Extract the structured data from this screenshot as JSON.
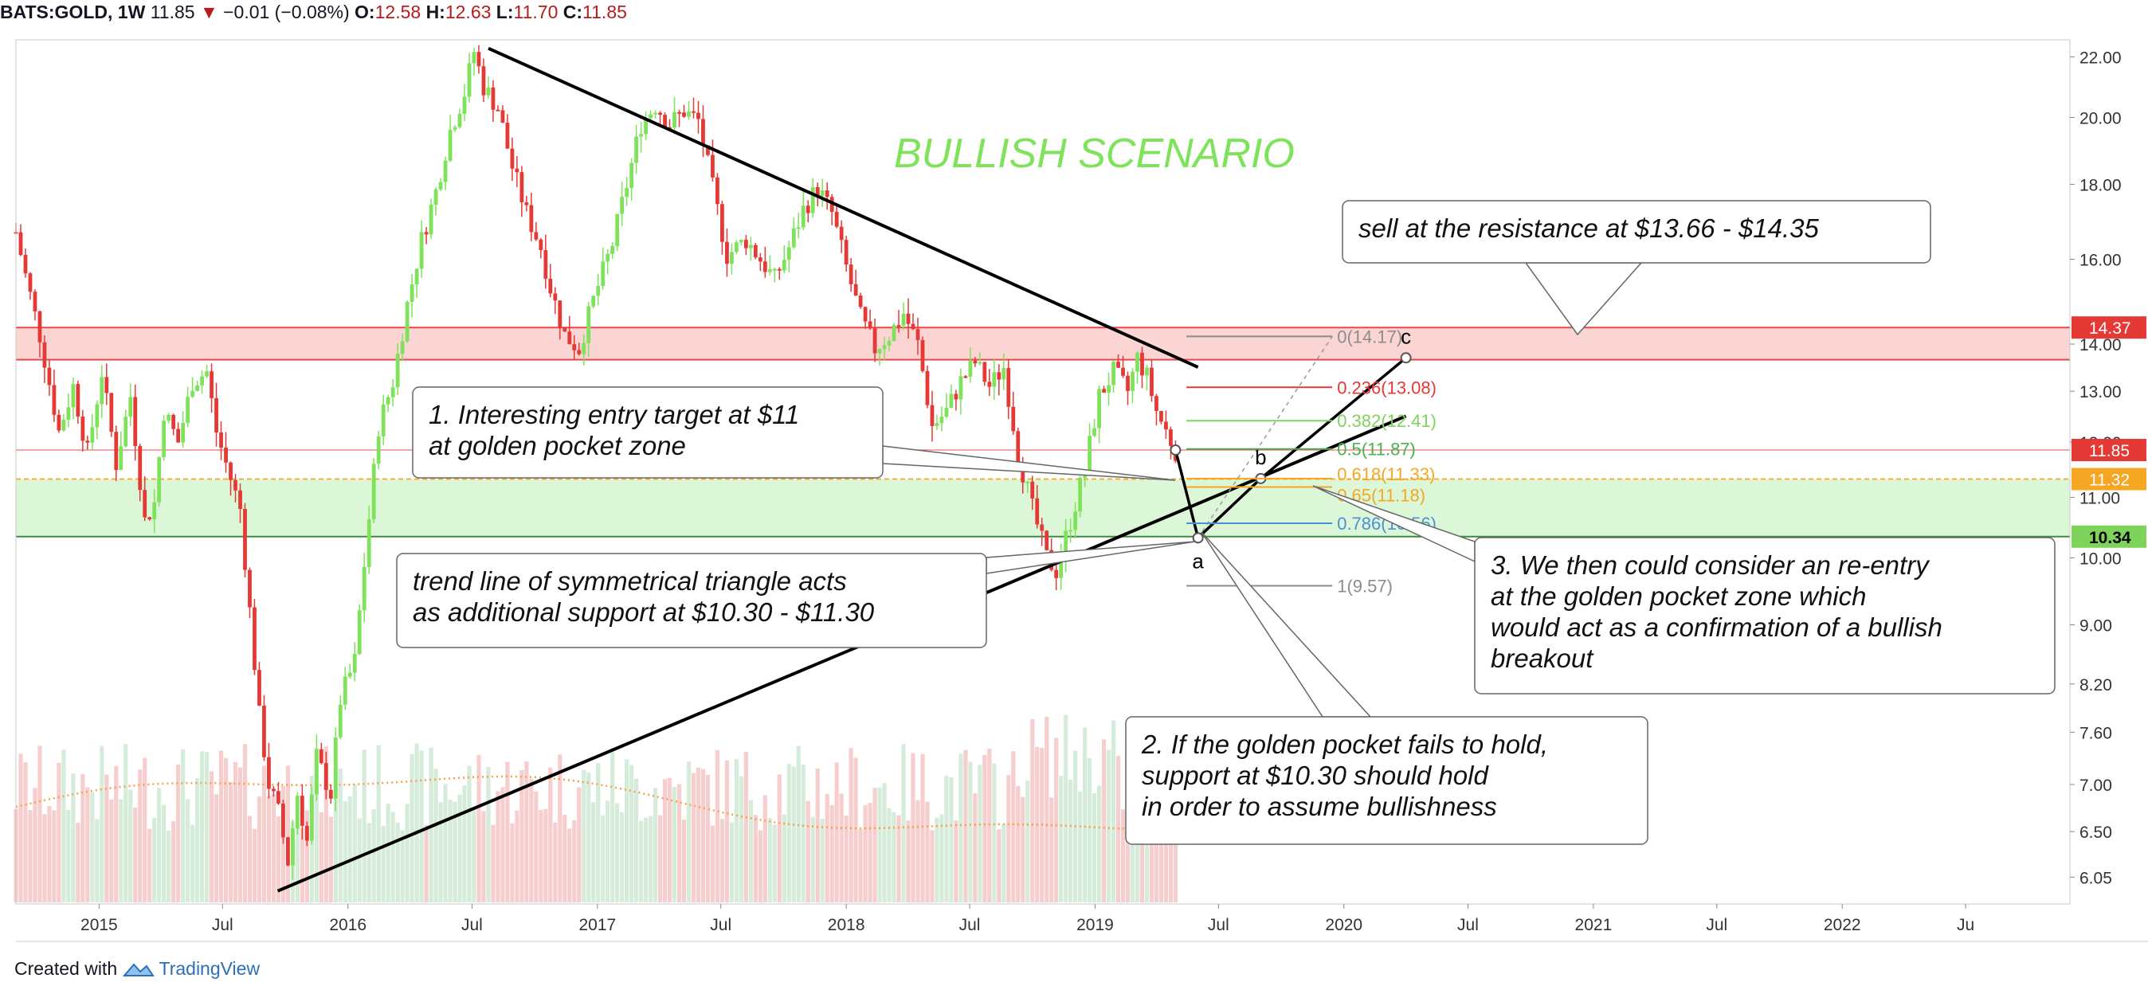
{
  "header": {
    "symbol": "BATS:GOLD, 1W",
    "last": "11.85",
    "arrow": "▼",
    "change": "−0.01 (−0.08%)",
    "o_label": "O:",
    "o_value": "12.58",
    "h_label": "H:",
    "h_value": "12.63",
    "l_label": "L:",
    "l_value": "11.70",
    "c_label": "C:",
    "c_value": "11.85"
  },
  "footer": {
    "prefix": "Created with",
    "brand": "TradingView"
  },
  "colors": {
    "up": "#7ee35a",
    "down": "#e53935",
    "fib_red": "#e53935",
    "fib_green": "#7ed35a",
    "fib_orange": "#f5a623",
    "fib_blue": "#4a90d9",
    "fib_gray": "#8c8c8c",
    "scenario": "#7ee35a",
    "resistance_zone": "#fbd4d4",
    "support_zone": "#dcf7d8"
  },
  "chart_data": {
    "type": "candlestick",
    "title": "BULLISH SCENARIO",
    "symbol": "BATS:GOLD",
    "interval": "1W",
    "y_axis": {
      "scale": "log",
      "range": [
        5.8,
        22.6
      ],
      "ticks": [
        "22.00",
        "20.00",
        "18.00",
        "16.00",
        "14.00",
        "13.00",
        "12.00",
        "11.00",
        "10.00",
        "9.00",
        "8.20",
        "7.60",
        "7.00",
        "6.50",
        "6.05"
      ]
    },
    "x_axis": {
      "range": [
        "2014-09",
        "2022-12"
      ],
      "ticks": [
        {
          "date": "2015-01",
          "label": "2015"
        },
        {
          "date": "2015-07",
          "label": "Jul"
        },
        {
          "date": "2016-01",
          "label": "2016"
        },
        {
          "date": "2016-07",
          "label": "Jul"
        },
        {
          "date": "2017-01",
          "label": "2017"
        },
        {
          "date": "2017-07",
          "label": "Jul"
        },
        {
          "date": "2018-01",
          "label": "2018"
        },
        {
          "date": "2018-07",
          "label": "Jul"
        },
        {
          "date": "2019-01",
          "label": "2019"
        },
        {
          "date": "2019-07",
          "label": "Jul"
        },
        {
          "date": "2020-01",
          "label": "2020"
        },
        {
          "date": "2020-07",
          "label": "Jul"
        },
        {
          "date": "2021-01",
          "label": "2021"
        },
        {
          "date": "2021-07",
          "label": "Jul"
        },
        {
          "date": "2022-01",
          "label": "2022"
        },
        {
          "date": "2022-07",
          "label": "Ju"
        }
      ]
    },
    "price_path": [
      [
        "2014-09-01",
        16.7
      ],
      [
        "2014-09-15",
        15.6
      ],
      [
        "2014-10-06",
        14.2
      ],
      [
        "2014-11-03",
        12.2
      ],
      [
        "2014-11-24",
        13.1
      ],
      [
        "2014-12-15",
        11.8
      ],
      [
        "2015-01-05",
        13.4
      ],
      [
        "2015-01-26",
        11.6
      ],
      [
        "2015-02-16",
        12.9
      ],
      [
        "2015-03-09",
        10.6
      ],
      [
        "2015-03-23",
        10.9
      ],
      [
        "2015-04-06",
        12.6
      ],
      [
        "2015-04-27",
        12.0
      ],
      [
        "2015-05-18",
        13.2
      ],
      [
        "2015-06-08",
        13.4
      ],
      [
        "2015-06-22",
        12.2
      ],
      [
        "2015-07-06",
        11.6
      ],
      [
        "2015-07-27",
        10.8
      ],
      [
        "2015-08-10",
        9.2
      ],
      [
        "2015-08-24",
        7.8
      ],
      [
        "2015-09-07",
        7.0
      ],
      [
        "2015-09-21",
        6.7
      ],
      [
        "2015-10-05",
        6.2
      ],
      [
        "2015-10-19",
        6.9
      ],
      [
        "2015-11-02",
        6.4
      ],
      [
        "2015-11-16",
        7.3
      ],
      [
        "2015-12-07",
        6.9
      ],
      [
        "2015-12-21",
        8.0
      ],
      [
        "2016-01-11",
        8.5
      ],
      [
        "2016-01-25",
        9.9
      ],
      [
        "2016-02-15",
        12.3
      ],
      [
        "2016-03-07",
        13.2
      ],
      [
        "2016-03-28",
        14.9
      ],
      [
        "2016-04-18",
        16.5
      ],
      [
        "2016-05-09",
        17.8
      ],
      [
        "2016-05-30",
        19.6
      ],
      [
        "2016-06-20",
        20.8
      ],
      [
        "2016-07-04",
        22.2
      ],
      [
        "2016-07-18",
        21.0
      ],
      [
        "2016-08-08",
        20.3
      ],
      [
        "2016-08-29",
        18.5
      ],
      [
        "2016-09-19",
        17.2
      ],
      [
        "2016-10-10",
        16.3
      ],
      [
        "2016-10-24",
        15.3
      ],
      [
        "2016-11-14",
        14.2
      ],
      [
        "2016-12-05",
        13.9
      ],
      [
        "2016-12-26",
        15.0
      ],
      [
        "2017-01-23",
        16.4
      ],
      [
        "2017-02-13",
        18.0
      ],
      [
        "2017-03-06",
        19.8
      ],
      [
        "2017-03-27",
        20.4
      ],
      [
        "2017-04-17",
        19.8
      ],
      [
        "2017-05-08",
        20.2
      ],
      [
        "2017-05-29",
        19.9
      ],
      [
        "2017-06-19",
        17.9
      ],
      [
        "2017-07-10",
        16.1
      ],
      [
        "2017-08-07",
        16.5
      ],
      [
        "2017-08-28",
        16.0
      ],
      [
        "2017-09-18",
        15.5
      ],
      [
        "2017-10-09",
        16.3
      ],
      [
        "2017-10-30",
        17.3
      ],
      [
        "2017-11-20",
        17.9
      ],
      [
        "2017-12-11",
        17.2
      ],
      [
        "2018-01-01",
        15.8
      ],
      [
        "2018-01-22",
        14.6
      ],
      [
        "2018-02-12",
        13.9
      ],
      [
        "2018-03-05",
        14.2
      ],
      [
        "2018-03-26",
        14.7
      ],
      [
        "2018-04-16",
        14.0
      ],
      [
        "2018-05-07",
        12.3
      ],
      [
        "2018-05-28",
        12.6
      ],
      [
        "2018-06-18",
        13.2
      ],
      [
        "2018-07-09",
        13.6
      ],
      [
        "2018-07-30",
        13.1
      ],
      [
        "2018-08-20",
        13.5
      ],
      [
        "2018-09-10",
        11.8
      ],
      [
        "2018-10-01",
        10.8
      ],
      [
        "2018-10-22",
        10.0
      ],
      [
        "2018-11-05",
        9.8
      ],
      [
        "2018-11-26",
        10.6
      ],
      [
        "2018-12-17",
        11.5
      ],
      [
        "2019-01-07",
        12.9
      ],
      [
        "2019-01-28",
        13.4
      ],
      [
        "2019-02-18",
        13.0
      ],
      [
        "2019-03-04",
        13.7
      ],
      [
        "2019-03-18",
        13.3
      ],
      [
        "2019-04-01",
        12.6
      ],
      [
        "2019-04-15",
        12.2
      ],
      [
        "2019-04-29",
        11.85
      ]
    ],
    "indicators": {
      "volume": "histogram",
      "volume_moving_average": "dotted orange line"
    },
    "horizontal_levels": [
      {
        "price": 14.37,
        "label": "14.37",
        "role": "resistance",
        "color": "#e53935"
      },
      {
        "price": 13.66,
        "label": "13.66",
        "role": "resistance",
        "color": "#e53935"
      },
      {
        "price": 11.85,
        "label": "11.85",
        "role": "last price",
        "color": "#e53935"
      },
      {
        "price": 11.32,
        "label": "11.32",
        "role": "support",
        "color": "#f5a623"
      },
      {
        "price": 10.34,
        "label": "10.34",
        "role": "support",
        "color": "#2e7d32"
      }
    ],
    "trendlines": [
      {
        "name": "upper",
        "from": [
          "2016-07-25",
          22.3
        ],
        "to": [
          "2019-06-01",
          13.5
        ]
      },
      {
        "name": "lower",
        "from": [
          "2015-09-20",
          5.92
        ],
        "to": [
          "2020-04-01",
          12.5
        ]
      }
    ],
    "fib_retracement": {
      "levels": [
        {
          "ratio": "0",
          "text": "0(14.17)",
          "price": 14.17,
          "color": "#8c8c8c"
        },
        {
          "ratio": "0.236",
          "text": "0.236(13.08)",
          "price": 13.08,
          "color": "#e53935"
        },
        {
          "ratio": "0.382",
          "text": "0.382(12.41)",
          "price": 12.41,
          "color": "#7ed35a"
        },
        {
          "ratio": "0.5",
          "text": "0.5(11.87)",
          "price": 11.87,
          "color": "#4caf50"
        },
        {
          "ratio": "0.618",
          "text": "0.618(11.33)",
          "price": 11.33,
          "color": "#f5a623"
        },
        {
          "ratio": "0.65",
          "text": "0.65(11.18)",
          "price": 11.18,
          "color": "#f5a623"
        },
        {
          "ratio": "0.786",
          "text": "0.786(10.56)",
          "price": 10.56,
          "color": "#4a90d9"
        },
        {
          "ratio": "1",
          "text": "1(9.57)",
          "price": 9.57,
          "color": "#8c8c8c"
        }
      ]
    },
    "projection": {
      "points": [
        {
          "label": "",
          "date": "2019-04-29",
          "price": 11.85
        },
        {
          "label": "a",
          "date": "2019-06-01",
          "price": 10.32
        },
        {
          "label": "b",
          "date": "2019-09-01",
          "price": 11.33
        },
        {
          "label": "c",
          "date": "2020-04-01",
          "price": 13.7
        }
      ]
    },
    "annotations": [
      {
        "id": "resistance-note",
        "text": [
          "sell at the resistance at $13.66 - $14.35"
        ]
      },
      {
        "id": "note-1",
        "text": [
          "1. Interesting entry target at $11",
          " at golden pocket zone"
        ]
      },
      {
        "id": "trendline-note",
        "text": [
          "trend line of symmetrical triangle acts",
          "as additional support at $10.30 - $11.30"
        ]
      },
      {
        "id": "note-2",
        "text": [
          "2. If the golden pocket fails to hold,",
          "support at $10.30 should hold",
          "in order to assume bullishness"
        ]
      },
      {
        "id": "note-3",
        "text": [
          "3. We then could consider an re-entry",
          "at the golden pocket zone which",
          "would act as a confirmation of a bullish",
          "breakout"
        ]
      }
    ]
  }
}
